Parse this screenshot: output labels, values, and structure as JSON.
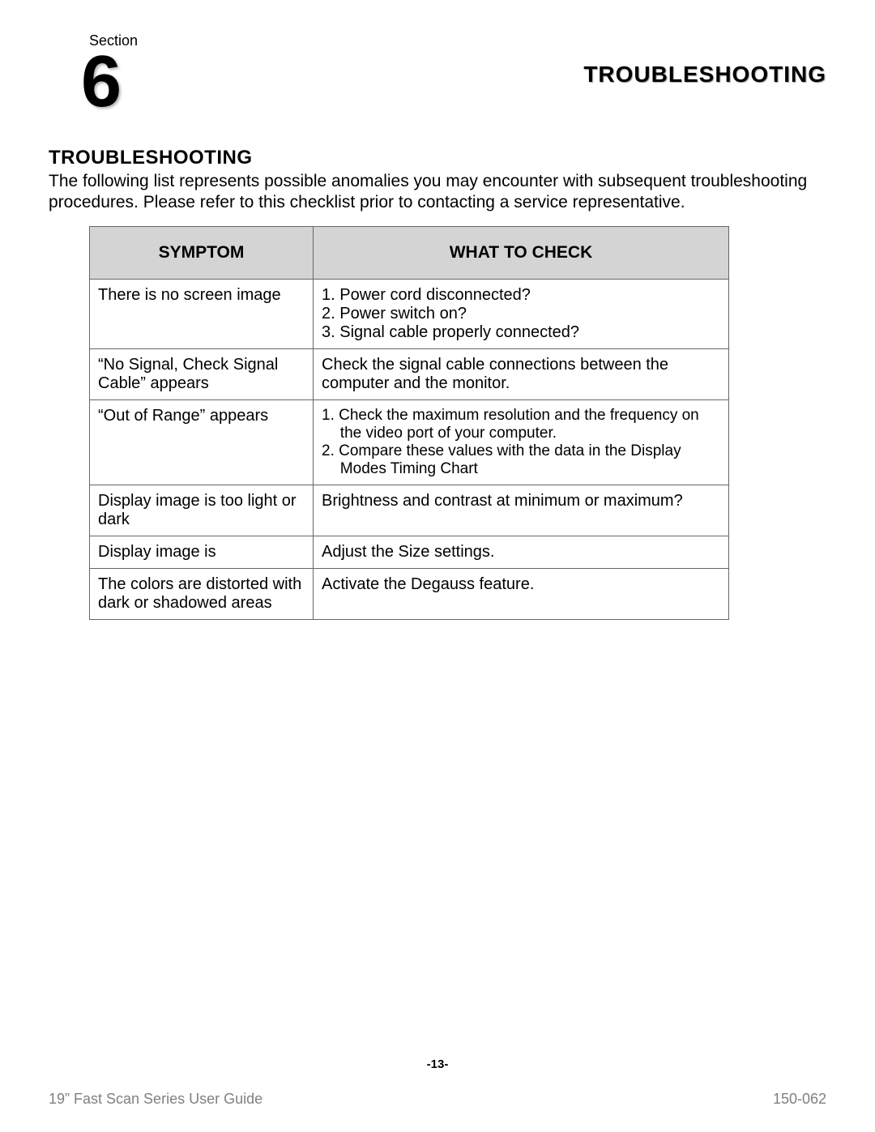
{
  "section_label": "Section",
  "section_number": "6",
  "header_title": "TROUBLESHOOTING",
  "main_heading": "TROUBLESHOOTING",
  "intro_para": "The following list represents possible anomalies you may encounter with subsequent troubleshooting procedures. Please refer to this checklist prior to contacting a service representative.",
  "table": {
    "header_symptom": "SYMPTOM",
    "header_check": "WHAT TO CHECK",
    "rows": [
      {
        "symptom": "There is no screen image",
        "check_list": [
          "1. Power cord disconnected?",
          "2. Power switch on?",
          "3. Signal cable properly connected?"
        ]
      },
      {
        "symptom": "“No Signal, Check  Signal Cable” appears",
        "check_text": "Check the signal cable connections between the computer and the monitor."
      },
      {
        "symptom": "“Out of Range”   appears",
        "check_list_small": [
          "1. Check the maximum resolution and the frequency on the video port of your computer.",
          "2. Compare these values with the data in the Display Modes Timing Chart"
        ]
      },
      {
        "symptom": "Display image is too light or dark",
        "check_text": "Brightness and contrast at minimum or maximum?"
      },
      {
        "symptom": "Display image is",
        "check_text": "Adjust the Size settings."
      },
      {
        "symptom": "The colors are distorted with dark or shadowed areas",
        "check_text": "Activate the Degauss feature."
      }
    ]
  },
  "page_number": "-13-",
  "footer_left": "19” Fast Scan Series User Guide",
  "footer_right": "150-062",
  "colors": {
    "table_header_bg": "#d4d4d4",
    "table_border": "#666666",
    "footer_text": "#808080",
    "body_text": "#000000",
    "background": "#ffffff"
  }
}
